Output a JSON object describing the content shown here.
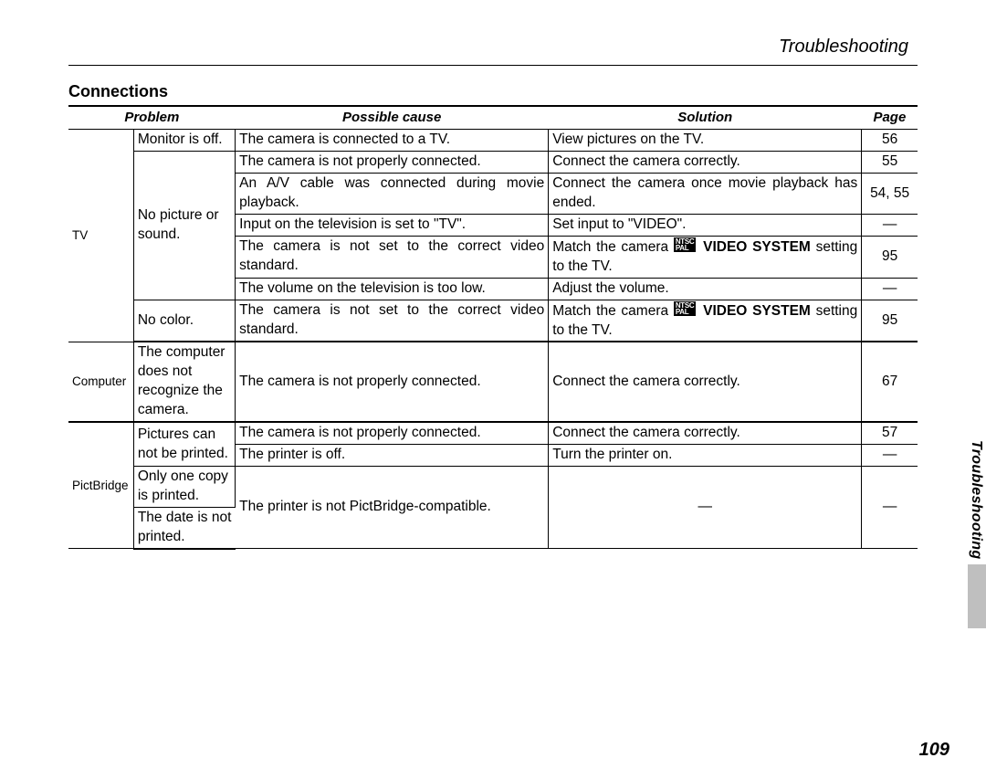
{
  "running_head": "Troubleshooting",
  "section_title": "Connections",
  "side_tab_label": "Troubleshooting",
  "side_tab_color": "#bfbfbf",
  "page_number": "109",
  "icon_top": "NTSC",
  "icon_bottom": "PAL",
  "columns": {
    "category": "",
    "problem": "Problem",
    "cause": "Possible cause",
    "solution": "Solution",
    "page": "Page"
  },
  "dash": "—",
  "table": {
    "tv_label": "TV",
    "tv": {
      "monitor_off": {
        "problem": "Monitor is off.",
        "cause": "The camera is connected to a TV.",
        "solution": "View pictures on the TV.",
        "page": "56"
      },
      "no_pic": {
        "problem": "No picture or sound."
      },
      "np_row1": {
        "cause": "The camera is not properly connected.",
        "solution": "Connect the camera correctly.",
        "page": "55"
      },
      "np_row2": {
        "cause": "An A/V cable was connected during movie playback.",
        "solution": "Connect the camera once movie playback has ended.",
        "page": "54, 55"
      },
      "np_row3": {
        "cause": "Input on the television is set to \"TV\".",
        "solution": "Set input to \"VIDEO\".",
        "page": "—"
      },
      "np_row4": {
        "cause": "The camera is not set to the correct video standard.",
        "sol_pre": "Match the camera ",
        "sol_bold": " VIDEO SYSTEM",
        "sol_post": " setting to the TV.",
        "page": "95"
      },
      "np_row5": {
        "cause": "The volume on the television is too low.",
        "solution": "Adjust the volume.",
        "page": "—"
      },
      "no_color": {
        "problem": "No color."
      },
      "nc_row": {
        "cause": "The camera is not set to the correct video standard.",
        "sol_pre": "Match the camera ",
        "sol_bold": " VIDEO SYSTEM",
        "sol_post": " setting to the TV.",
        "page": "95"
      }
    },
    "computer_label": "Computer",
    "computer": {
      "problem": "The computer does not recognize the camera.",
      "cause": "The camera is not properly connected.",
      "solution": "Connect the camera correctly.",
      "page": "67"
    },
    "pict_label": "PictBridge",
    "pict": {
      "noprint": {
        "problem": "Pictures can not be printed."
      },
      "r1": {
        "cause": "The camera is not properly connected.",
        "solution": "Connect the camera correctly.",
        "page": "57"
      },
      "r2": {
        "cause": "The printer is off.",
        "solution": "Turn the printer on.",
        "page": "—"
      },
      "onecopy": {
        "problem": "Only one copy is printed."
      },
      "nodate": {
        "problem": "The date is not printed."
      },
      "shared": {
        "cause": "The printer is not PictBridge-compatible.",
        "solution": "—",
        "page": "—"
      }
    }
  }
}
